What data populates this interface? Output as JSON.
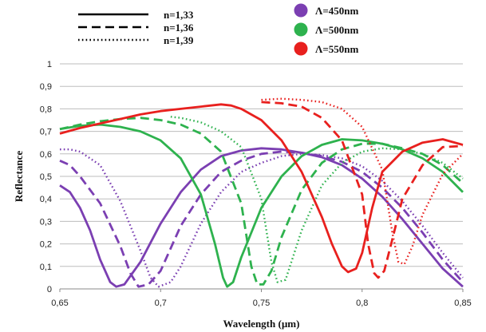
{
  "chart_data": {
    "type": "line",
    "title": "",
    "xlabel": "Wavelength (µm)",
    "ylabel": "Reflectance",
    "xlim": [
      0.65,
      0.85
    ],
    "ylim": [
      0,
      1
    ],
    "x_ticks": [
      "0,65",
      "0,7",
      "0,75",
      "0,8",
      "0,85"
    ],
    "y_ticks": [
      "0",
      "0,1",
      "0,2",
      "0,3",
      "0,4",
      "0,5",
      "0,6",
      "0,7",
      "0,8",
      "0,9",
      "1"
    ],
    "grid": "horizontal",
    "legend_styles": [
      {
        "label": "n=1,33",
        "dash": "solid"
      },
      {
        "label": "n=1,36",
        "dash": "dashed"
      },
      {
        "label": "n=1,39",
        "dash": "dotted"
      }
    ],
    "legend_colors": [
      {
        "label": "Λ=450nm",
        "color": "#7B3FB2"
      },
      {
        "label": "Λ=500nm",
        "color": "#2EB24E"
      },
      {
        "label": "Λ=550nm",
        "color": "#E8201E"
      }
    ],
    "series": [
      {
        "period": "450",
        "n": "1,33",
        "dash": "solid",
        "color": "#7B3FB2",
        "points": [
          [
            0.65,
            0.46
          ],
          [
            0.655,
            0.43
          ],
          [
            0.66,
            0.36
          ],
          [
            0.665,
            0.26
          ],
          [
            0.67,
            0.13
          ],
          [
            0.675,
            0.03
          ],
          [
            0.678,
            0.01
          ],
          [
            0.682,
            0.02
          ],
          [
            0.69,
            0.12
          ],
          [
            0.7,
            0.29
          ],
          [
            0.71,
            0.43
          ],
          [
            0.72,
            0.53
          ],
          [
            0.73,
            0.59
          ],
          [
            0.74,
            0.615
          ],
          [
            0.75,
            0.625
          ],
          [
            0.76,
            0.62
          ],
          [
            0.77,
            0.605
          ],
          [
            0.78,
            0.585
          ],
          [
            0.79,
            0.55
          ],
          [
            0.8,
            0.49
          ],
          [
            0.81,
            0.41
          ],
          [
            0.82,
            0.31
          ],
          [
            0.83,
            0.2
          ],
          [
            0.84,
            0.09
          ],
          [
            0.85,
            0.01
          ]
        ]
      },
      {
        "period": "450",
        "n": "1,36",
        "dash": "dashed",
        "color": "#7B3FB2",
        "points": [
          [
            0.65,
            0.57
          ],
          [
            0.655,
            0.55
          ],
          [
            0.66,
            0.5
          ],
          [
            0.67,
            0.38
          ],
          [
            0.68,
            0.19
          ],
          [
            0.685,
            0.07
          ],
          [
            0.689,
            0.01
          ],
          [
            0.694,
            0.02
          ],
          [
            0.7,
            0.08
          ],
          [
            0.71,
            0.28
          ],
          [
            0.72,
            0.42
          ],
          [
            0.73,
            0.52
          ],
          [
            0.74,
            0.57
          ],
          [
            0.75,
            0.6
          ],
          [
            0.76,
            0.61
          ],
          [
            0.77,
            0.605
          ],
          [
            0.78,
            0.59
          ],
          [
            0.79,
            0.565
          ],
          [
            0.8,
            0.52
          ],
          [
            0.81,
            0.45
          ],
          [
            0.82,
            0.36
          ],
          [
            0.83,
            0.25
          ],
          [
            0.84,
            0.13
          ],
          [
            0.85,
            0.03
          ]
        ]
      },
      {
        "period": "450",
        "n": "1,39",
        "dash": "dotted",
        "color": "#7B3FB2",
        "points": [
          [
            0.65,
            0.62
          ],
          [
            0.655,
            0.62
          ],
          [
            0.66,
            0.61
          ],
          [
            0.67,
            0.55
          ],
          [
            0.68,
            0.39
          ],
          [
            0.69,
            0.17
          ],
          [
            0.695,
            0.05
          ],
          [
            0.699,
            0.01
          ],
          [
            0.705,
            0.03
          ],
          [
            0.71,
            0.1
          ],
          [
            0.72,
            0.29
          ],
          [
            0.73,
            0.43
          ],
          [
            0.74,
            0.52
          ],
          [
            0.75,
            0.56
          ],
          [
            0.76,
            0.59
          ],
          [
            0.77,
            0.6
          ],
          [
            0.78,
            0.595
          ],
          [
            0.79,
            0.58
          ],
          [
            0.8,
            0.545
          ],
          [
            0.81,
            0.48
          ],
          [
            0.82,
            0.39
          ],
          [
            0.83,
            0.28
          ],
          [
            0.84,
            0.16
          ],
          [
            0.85,
            0.05
          ]
        ]
      },
      {
        "period": "500",
        "n": "1,33",
        "dash": "solid",
        "color": "#2EB24E",
        "points": [
          [
            0.65,
            0.71
          ],
          [
            0.66,
            0.725
          ],
          [
            0.67,
            0.73
          ],
          [
            0.68,
            0.72
          ],
          [
            0.69,
            0.7
          ],
          [
            0.7,
            0.66
          ],
          [
            0.71,
            0.58
          ],
          [
            0.72,
            0.42
          ],
          [
            0.727,
            0.2
          ],
          [
            0.731,
            0.05
          ],
          [
            0.733,
            0.01
          ],
          [
            0.736,
            0.03
          ],
          [
            0.74,
            0.14
          ],
          [
            0.75,
            0.36
          ],
          [
            0.76,
            0.5
          ],
          [
            0.77,
            0.59
          ],
          [
            0.78,
            0.64
          ],
          [
            0.79,
            0.665
          ],
          [
            0.8,
            0.66
          ],
          [
            0.81,
            0.645
          ],
          [
            0.82,
            0.62
          ],
          [
            0.83,
            0.58
          ],
          [
            0.84,
            0.52
          ],
          [
            0.85,
            0.43
          ]
        ]
      },
      {
        "period": "500",
        "n": "1,36",
        "dash": "dashed",
        "color": "#2EB24E",
        "points": [
          [
            0.65,
            0.71
          ],
          [
            0.66,
            0.73
          ],
          [
            0.67,
            0.745
          ],
          [
            0.68,
            0.755
          ],
          [
            0.69,
            0.76
          ],
          [
            0.7,
            0.75
          ],
          [
            0.71,
            0.73
          ],
          [
            0.72,
            0.69
          ],
          [
            0.73,
            0.61
          ],
          [
            0.74,
            0.38
          ],
          [
            0.745,
            0.1
          ],
          [
            0.748,
            0.02
          ],
          [
            0.751,
            0.02
          ],
          [
            0.755,
            0.08
          ],
          [
            0.76,
            0.23
          ],
          [
            0.77,
            0.44
          ],
          [
            0.78,
            0.56
          ],
          [
            0.79,
            0.62
          ],
          [
            0.8,
            0.645
          ],
          [
            0.81,
            0.645
          ],
          [
            0.82,
            0.625
          ],
          [
            0.83,
            0.6
          ],
          [
            0.84,
            0.55
          ],
          [
            0.85,
            0.47
          ]
        ]
      },
      {
        "period": "500",
        "n": "1,39",
        "dash": "dotted",
        "color": "#2EB24E",
        "points": [
          [
            0.705,
            0.765
          ],
          [
            0.71,
            0.76
          ],
          [
            0.72,
            0.74
          ],
          [
            0.73,
            0.7
          ],
          [
            0.74,
            0.63
          ],
          [
            0.75,
            0.4
          ],
          [
            0.755,
            0.12
          ],
          [
            0.758,
            0.03
          ],
          [
            0.762,
            0.04
          ],
          [
            0.77,
            0.26
          ],
          [
            0.78,
            0.46
          ],
          [
            0.79,
            0.56
          ],
          [
            0.8,
            0.61
          ],
          [
            0.81,
            0.625
          ],
          [
            0.82,
            0.62
          ],
          [
            0.83,
            0.6
          ],
          [
            0.84,
            0.56
          ],
          [
            0.85,
            0.49
          ]
        ]
      },
      {
        "period": "550",
        "n": "1,33",
        "dash": "solid",
        "color": "#E8201E",
        "points": [
          [
            0.65,
            0.69
          ],
          [
            0.66,
            0.715
          ],
          [
            0.67,
            0.735
          ],
          [
            0.68,
            0.755
          ],
          [
            0.69,
            0.775
          ],
          [
            0.7,
            0.79
          ],
          [
            0.71,
            0.8
          ],
          [
            0.72,
            0.81
          ],
          [
            0.73,
            0.82
          ],
          [
            0.735,
            0.815
          ],
          [
            0.74,
            0.8
          ],
          [
            0.75,
            0.75
          ],
          [
            0.76,
            0.66
          ],
          [
            0.77,
            0.52
          ],
          [
            0.78,
            0.32
          ],
          [
            0.785,
            0.2
          ],
          [
            0.79,
            0.1
          ],
          [
            0.793,
            0.075
          ],
          [
            0.797,
            0.09
          ],
          [
            0.8,
            0.16
          ],
          [
            0.805,
            0.36
          ],
          [
            0.81,
            0.52
          ],
          [
            0.82,
            0.61
          ],
          [
            0.83,
            0.65
          ],
          [
            0.84,
            0.665
          ],
          [
            0.85,
            0.64
          ]
        ]
      },
      {
        "period": "550",
        "n": "1,36",
        "dash": "dashed",
        "color": "#E8201E",
        "points": [
          [
            0.75,
            0.83
          ],
          [
            0.76,
            0.825
          ],
          [
            0.77,
            0.81
          ],
          [
            0.78,
            0.76
          ],
          [
            0.79,
            0.66
          ],
          [
            0.8,
            0.42
          ],
          [
            0.803,
            0.2
          ],
          [
            0.806,
            0.07
          ],
          [
            0.808,
            0.05
          ],
          [
            0.811,
            0.08
          ],
          [
            0.815,
            0.22
          ],
          [
            0.82,
            0.4
          ],
          [
            0.83,
            0.55
          ],
          [
            0.84,
            0.63
          ],
          [
            0.85,
            0.635
          ]
        ]
      },
      {
        "period": "550",
        "n": "1,39",
        "dash": "dotted",
        "color": "#E8201E",
        "points": [
          [
            0.75,
            0.84
          ],
          [
            0.76,
            0.845
          ],
          [
            0.77,
            0.84
          ],
          [
            0.78,
            0.83
          ],
          [
            0.79,
            0.8
          ],
          [
            0.8,
            0.72
          ],
          [
            0.81,
            0.53
          ],
          [
            0.815,
            0.25
          ],
          [
            0.818,
            0.12
          ],
          [
            0.821,
            0.11
          ],
          [
            0.825,
            0.19
          ],
          [
            0.83,
            0.33
          ],
          [
            0.84,
            0.51
          ],
          [
            0.85,
            0.6
          ]
        ]
      }
    ]
  }
}
